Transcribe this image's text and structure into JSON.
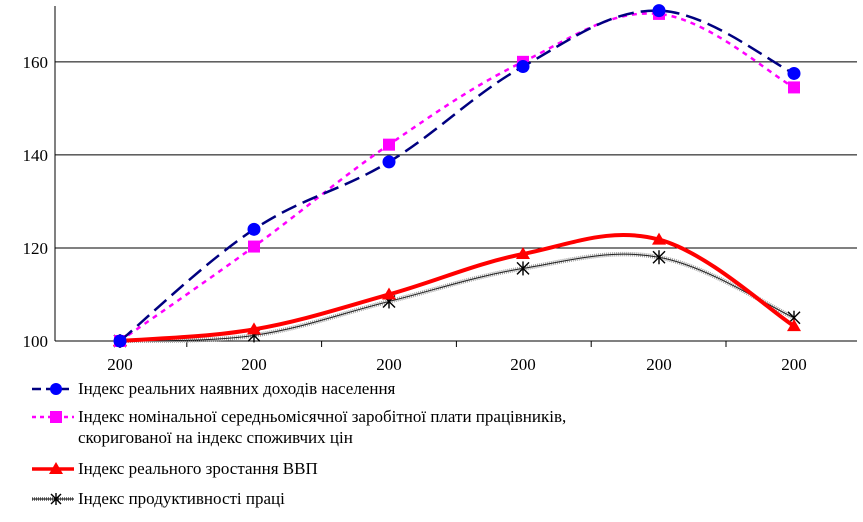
{
  "chart_data": {
    "type": "line",
    "title": "",
    "xlabel": "",
    "ylabel": "",
    "categories": [
      "200",
      "200",
      "200",
      "200",
      "200",
      "200"
    ],
    "yticks": [
      100,
      120,
      140,
      160
    ],
    "ylim": [
      100,
      172
    ],
    "grid": "horizontal",
    "legend_position": "bottom",
    "series": [
      {
        "name": "Індекс реальних наявних доходів населення",
        "values": [
          100,
          124,
          138.5,
          159,
          171,
          157.5
        ],
        "color": "#000080",
        "marker": "circle",
        "marker_color": "#0000ff",
        "line_style": "long-dash"
      },
      {
        "name": "Індекс номінальної середньомісячної заробітної плати працівників,\nскоригованої на індекс споживчих цін",
        "values": [
          100,
          120.3,
          142.2,
          160,
          170.3,
          154.5
        ],
        "color": "#ff00ff",
        "marker": "square",
        "marker_color": "#ff00ff",
        "line_style": "short-dash"
      },
      {
        "name": "Індекс реального зростання ВВП",
        "values": [
          100,
          102.5,
          110,
          118.7,
          121.8,
          103.2
        ],
        "color": "#ff0000",
        "marker": "triangle",
        "marker_color": "#ff0000",
        "line_style": "solid"
      },
      {
        "name": "Індекс продуктивності праці",
        "values": [
          100,
          101.2,
          108.5,
          115.6,
          118,
          105
        ],
        "color": "#808080",
        "marker": "star",
        "marker_color": "#000000",
        "line_style": "textured"
      }
    ]
  }
}
